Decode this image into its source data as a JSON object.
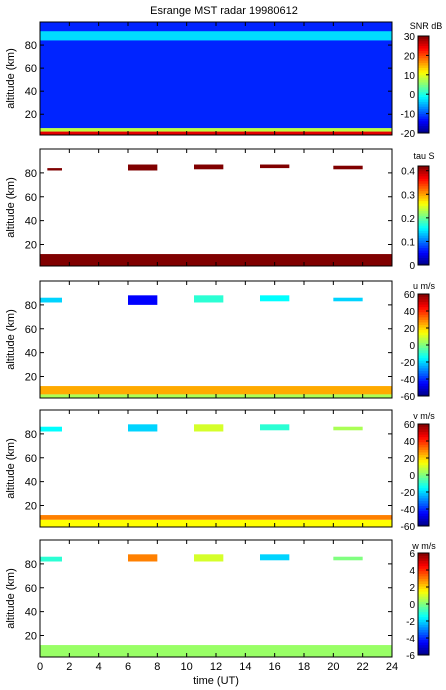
{
  "figure": {
    "title": "Esrange MST radar 19980612",
    "xlabel": "time (UT)"
  },
  "chart_data": [
    {
      "type": "heatmap",
      "quantity": "SNR",
      "title": "Esrange MST radar 19980612",
      "ylabel": "altitude (km)",
      "colorbar_label": "SNR dB",
      "xlim": [
        0,
        24
      ],
      "ylim": [
        2,
        100
      ],
      "x_ticks": [
        "0",
        "2",
        "4",
        "6",
        "8",
        "10",
        "12",
        "14",
        "16",
        "18",
        "20",
        "22",
        "24"
      ],
      "y_ticks": [
        "20",
        "40",
        "60",
        "80"
      ],
      "y_tick_values": [
        20,
        40,
        60,
        80
      ],
      "clim": [
        -20,
        30
      ],
      "cbar_ticks": [
        "30",
        "20",
        "10",
        "0",
        "-10",
        "-20"
      ],
      "cbar_tick_values": [
        30,
        20,
        10,
        0,
        -10,
        -20
      ],
      "colormap": "jet",
      "features": [
        {
          "x": [
            0,
            24
          ],
          "y": [
            2,
            5
          ],
          "value": 25,
          "desc": "strong low-altitude echo"
        },
        {
          "x": [
            0,
            24
          ],
          "y": [
            5,
            8
          ],
          "value": 8
        },
        {
          "x": [
            0,
            24
          ],
          "y": [
            8,
            100
          ],
          "value": -12,
          "desc": "noise background"
        },
        {
          "x": [
            0,
            24
          ],
          "y": [
            84,
            92
          ],
          "value": -3,
          "desc": "PMSE layer"
        }
      ]
    },
    {
      "type": "heatmap",
      "quantity": "tau",
      "ylabel": "altitude (km)",
      "colorbar_label": "tau S",
      "xlim": [
        0,
        24
      ],
      "ylim": [
        2,
        100
      ],
      "y_ticks": [
        "20",
        "40",
        "60",
        "80"
      ],
      "y_tick_values": [
        20,
        40,
        60,
        80
      ],
      "clim": [
        0,
        0.42
      ],
      "cbar_ticks": [
        "0.4",
        "0.3",
        "0.2",
        "0.1",
        "0"
      ],
      "cbar_tick_values": [
        0.4,
        0.3,
        0.2,
        0.1,
        0
      ],
      "colormap": "jet",
      "features": [
        {
          "x": [
            0,
            24
          ],
          "y": [
            2,
            12
          ],
          "value": 0.42
        },
        {
          "x": [
            0.5,
            1.5
          ],
          "y": [
            82,
            84
          ],
          "value": 0.42
        },
        {
          "x": [
            6,
            8
          ],
          "y": [
            82,
            87
          ],
          "value": 0.42
        },
        {
          "x": [
            10.5,
            12.5
          ],
          "y": [
            83,
            87
          ],
          "value": 0.42
        },
        {
          "x": [
            15,
            17
          ],
          "y": [
            84,
            87
          ],
          "value": 0.42
        },
        {
          "x": [
            20,
            22
          ],
          "y": [
            83,
            86
          ],
          "value": 0.42
        }
      ]
    },
    {
      "type": "heatmap",
      "quantity": "u",
      "ylabel": "altitude (km)",
      "colorbar_label": "u m/s",
      "xlim": [
        0,
        24
      ],
      "ylim": [
        2,
        100
      ],
      "y_ticks": [
        "20",
        "40",
        "60",
        "80"
      ],
      "y_tick_values": [
        20,
        40,
        60,
        80
      ],
      "clim": [
        -60,
        60
      ],
      "cbar_ticks": [
        "60",
        "40",
        "20",
        "0",
        "-20",
        "-40",
        "-60"
      ],
      "cbar_tick_values": [
        60,
        40,
        20,
        0,
        -20,
        -40,
        -60
      ],
      "colormap": "jet",
      "features": [
        {
          "x": [
            0,
            24
          ],
          "y": [
            5,
            12
          ],
          "value": 25
        },
        {
          "x": [
            0,
            24
          ],
          "y": [
            2,
            5
          ],
          "value": 5
        },
        {
          "x": [
            0,
            1.5
          ],
          "y": [
            82,
            86
          ],
          "value": -20
        },
        {
          "x": [
            6,
            8
          ],
          "y": [
            80,
            88
          ],
          "value": -45
        },
        {
          "x": [
            10.5,
            12.5
          ],
          "y": [
            82,
            88
          ],
          "value": -10
        },
        {
          "x": [
            15,
            17
          ],
          "y": [
            83,
            88
          ],
          "value": -15
        },
        {
          "x": [
            20,
            22
          ],
          "y": [
            83,
            86
          ],
          "value": -20
        }
      ]
    },
    {
      "type": "heatmap",
      "quantity": "v",
      "ylabel": "altitude (km)",
      "colorbar_label": "v m/s",
      "xlim": [
        0,
        24
      ],
      "ylim": [
        2,
        100
      ],
      "y_ticks": [
        "20",
        "40",
        "60",
        "80"
      ],
      "y_tick_values": [
        20,
        40,
        60,
        80
      ],
      "clim": [
        -60,
        60
      ],
      "cbar_ticks": [
        "60",
        "40",
        "20",
        "0",
        "-20",
        "-40",
        "-60"
      ],
      "cbar_tick_values": [
        60,
        40,
        20,
        0,
        -20,
        -40,
        -60
      ],
      "colormap": "jet",
      "features": [
        {
          "x": [
            0,
            24
          ],
          "y": [
            8,
            12
          ],
          "value": 30
        },
        {
          "x": [
            0,
            24
          ],
          "y": [
            2,
            8
          ],
          "value": 15
        },
        {
          "x": [
            0,
            1.5
          ],
          "y": [
            82,
            86
          ],
          "value": -15
        },
        {
          "x": [
            6,
            8
          ],
          "y": [
            82,
            88
          ],
          "value": -20
        },
        {
          "x": [
            10.5,
            12.5
          ],
          "y": [
            82,
            88
          ],
          "value": 10
        },
        {
          "x": [
            15,
            17
          ],
          "y": [
            83,
            88
          ],
          "value": -10
        },
        {
          "x": [
            20,
            22
          ],
          "y": [
            83,
            86
          ],
          "value": 5
        }
      ]
    },
    {
      "type": "heatmap",
      "quantity": "w",
      "ylabel": "altitude (km)",
      "colorbar_label": "w m/s",
      "xlabel": "time (UT)",
      "xlim": [
        0,
        24
      ],
      "ylim": [
        2,
        100
      ],
      "x_ticks": [
        "0",
        "2",
        "4",
        "6",
        "8",
        "10",
        "12",
        "14",
        "16",
        "18",
        "20",
        "22",
        "24"
      ],
      "y_ticks": [
        "20",
        "40",
        "60",
        "80"
      ],
      "y_tick_values": [
        20,
        40,
        60,
        80
      ],
      "clim": [
        -6,
        6
      ],
      "cbar_ticks": [
        "6",
        "4",
        "2",
        "0",
        "-2",
        "-4",
        "-6"
      ],
      "cbar_tick_values": [
        6,
        4,
        2,
        0,
        -2,
        -4,
        -6
      ],
      "colormap": "jet",
      "features": [
        {
          "x": [
            0,
            24
          ],
          "y": [
            2,
            12
          ],
          "value": 0.3
        },
        {
          "x": [
            0,
            1.5
          ],
          "y": [
            82,
            86
          ],
          "value": -1
        },
        {
          "x": [
            6,
            8
          ],
          "y": [
            82,
            88
          ],
          "value": 3
        },
        {
          "x": [
            10.5,
            12.5
          ],
          "y": [
            82,
            88
          ],
          "value": 1
        },
        {
          "x": [
            15,
            17
          ],
          "y": [
            83,
            88
          ],
          "value": -2
        },
        {
          "x": [
            20,
            22
          ],
          "y": [
            83,
            86
          ],
          "value": 0
        }
      ]
    }
  ]
}
